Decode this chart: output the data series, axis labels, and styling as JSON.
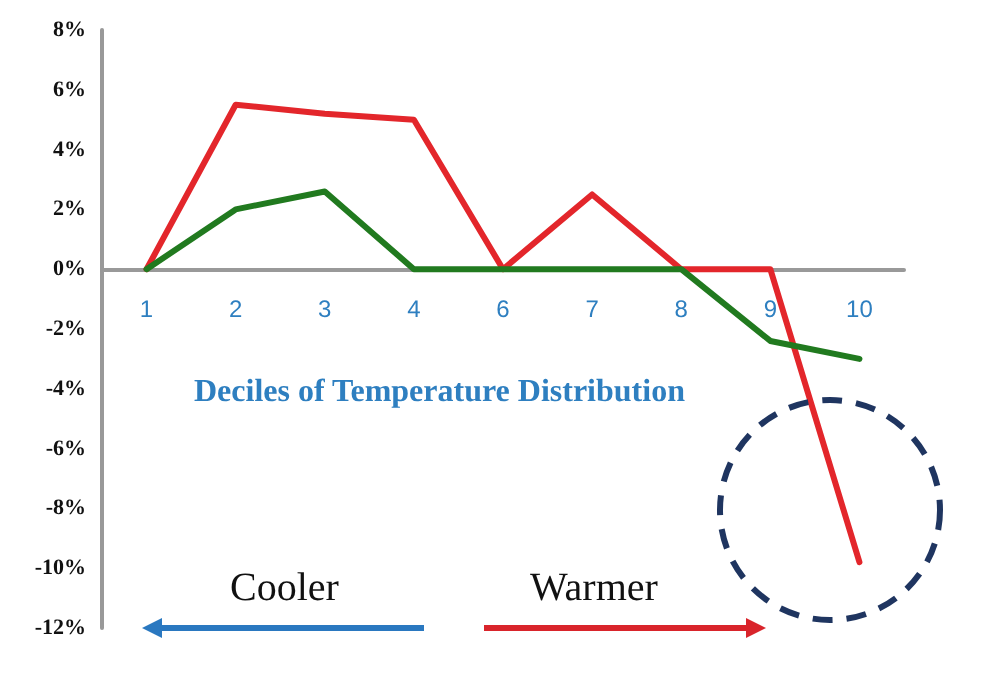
{
  "chart_data": {
    "type": "line",
    "xlabel": "Deciles of Temperature Distribution",
    "categories": [
      "1",
      "2",
      "3",
      "4",
      "6",
      "7",
      "8",
      "9",
      "10"
    ],
    "series": [
      {
        "color": "#e3262b",
        "values": [
          0,
          5.5,
          5.2,
          5.0,
          0,
          2.5,
          0,
          0,
          -9.8
        ]
      },
      {
        "color": "#217a1f",
        "values": [
          0,
          2.0,
          2.6,
          0,
          0,
          0,
          0,
          -2.4,
          -3.0
        ]
      }
    ],
    "ylim": [
      -12,
      8
    ],
    "yticks": [
      {
        "value": -12,
        "label": "-12%"
      },
      {
        "value": -10,
        "label": "-10%"
      },
      {
        "value": -8,
        "label": "-8%"
      },
      {
        "value": -6,
        "label": "-6%"
      },
      {
        "value": -4,
        "label": "-4%"
      },
      {
        "value": -2,
        "label": "-2%"
      },
      {
        "value": 0,
        "label": "0%"
      },
      {
        "value": 2,
        "label": "2%"
      },
      {
        "value": 4,
        "label": "4%"
      },
      {
        "value": 6,
        "label": "6%"
      },
      {
        "value": 8,
        "label": "8%"
      }
    ],
    "annotations": [
      "Cooler",
      "Warmer"
    ],
    "marker": "none",
    "line_style": "solid"
  }
}
